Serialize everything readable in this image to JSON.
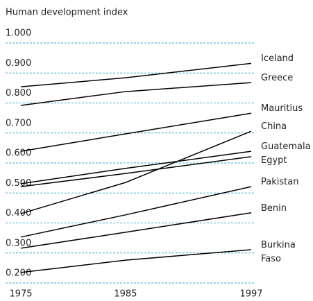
{
  "chart_data": {
    "type": "line",
    "y_label": "Human development index",
    "x": [
      1975,
      1985,
      1997
    ],
    "xlim": [
      1975,
      1997
    ],
    "xticks": [
      1975,
      1985,
      1997
    ],
    "ylim": [
      0.2,
      1.0
    ],
    "yticks": [
      {
        "value": 1.0,
        "label": "1.000"
      },
      {
        "value": 0.9,
        "label": "0.900"
      },
      {
        "value": 0.8,
        "label": "0.800"
      },
      {
        "value": 0.7,
        "label": "0.700"
      },
      {
        "value": 0.6,
        "label": "0.600"
      },
      {
        "value": 0.5,
        "label": "0.500"
      },
      {
        "value": 0.4,
        "label": "0.400"
      },
      {
        "value": 0.3,
        "label": "0.300"
      },
      {
        "value": 0.2,
        "label": "0.200"
      }
    ],
    "grid": true,
    "grid_color": "#3aa6cf",
    "series": [
      {
        "name": "Iceland",
        "color": "#000000",
        "values": [
          0.854,
          0.884,
          0.932
        ]
      },
      {
        "name": "Greece",
        "color": "#000000",
        "values": [
          0.792,
          0.838,
          0.868
        ]
      },
      {
        "name": "Mauritius",
        "color": "#000000",
        "values": [
          0.639,
          0.697,
          0.766
        ]
      },
      {
        "name": "China",
        "color": "#000000",
        "values": [
          0.431,
          0.535,
          0.706
        ]
      },
      {
        "name": "Guatemala",
        "color": "#000000",
        "values": [
          0.531,
          0.582,
          0.639
        ]
      },
      {
        "name": "Egypt",
        "color": "#000000",
        "values": [
          0.521,
          0.565,
          0.621
        ]
      },
      {
        "name": "Pakistan",
        "color": "#000000",
        "values": [
          0.353,
          0.427,
          0.521
        ]
      },
      {
        "name": "Benin",
        "color": "#000000",
        "values": [
          0.316,
          0.369,
          0.434
        ]
      },
      {
        "name": "Burkina Faso",
        "color": "#000000",
        "values": [
          0.235,
          0.276,
          0.311
        ]
      }
    ]
  }
}
